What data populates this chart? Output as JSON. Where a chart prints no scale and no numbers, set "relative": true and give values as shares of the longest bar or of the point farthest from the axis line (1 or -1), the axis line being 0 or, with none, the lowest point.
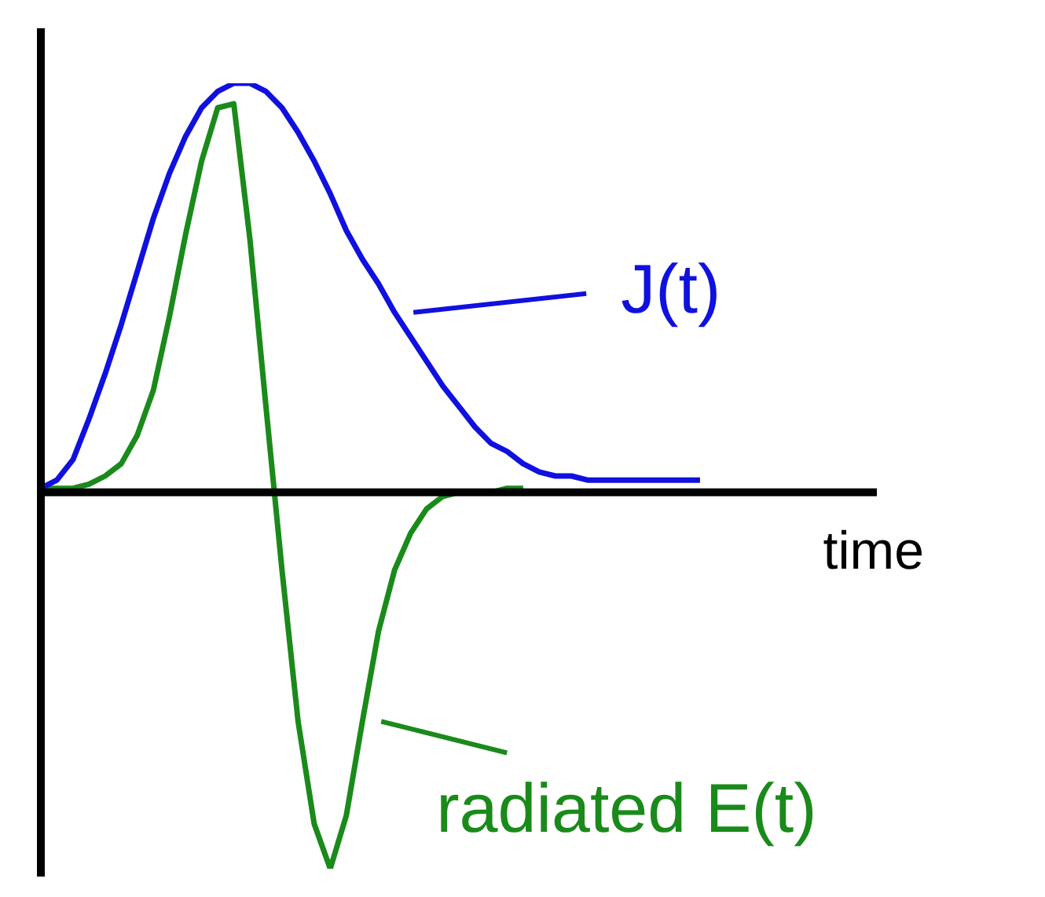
{
  "chart_data": {
    "type": "line",
    "relative": true,
    "xlabel": "time",
    "marker": "none",
    "line_style": "solid",
    "categories": [
      null,
      null,
      null,
      null,
      null,
      null,
      null,
      null,
      null,
      null,
      null,
      null,
      null,
      null,
      null,
      null,
      null,
      null,
      null,
      null,
      null,
      null,
      null,
      null,
      null,
      null,
      null,
      null,
      null,
      null,
      null,
      null,
      null,
      null,
      null,
      null,
      null,
      null,
      null,
      null,
      null,
      null,
      null,
      null,
      null,
      null,
      null,
      null,
      null,
      null,
      null,
      null,
      null
    ],
    "series": [
      {
        "name": "J(t)",
        "color": "#1010e0",
        "values": [
          0.01,
          0.03,
          0.08,
          0.18,
          0.29,
          0.41,
          0.54,
          0.67,
          0.78,
          0.87,
          0.94,
          0.98,
          1.0,
          1.0,
          0.98,
          0.94,
          0.88,
          0.81,
          0.73,
          0.64,
          0.57,
          0.51,
          0.44,
          0.38,
          0.32,
          0.26,
          0.21,
          0.16,
          0.12,
          0.1,
          0.07,
          0.05,
          0.04,
          0.04,
          0.03,
          0.03,
          0.03,
          0.03,
          0.03,
          0.03,
          0.03,
          0.03,
          null,
          null,
          null,
          null,
          null,
          null,
          null,
          null,
          null,
          null,
          null
        ]
      },
      {
        "name": "radiated E(t)",
        "color": "#1a8a1a",
        "values": [
          0.01,
          0.01,
          0.01,
          0.02,
          0.04,
          0.07,
          0.14,
          0.25,
          0.43,
          0.63,
          0.81,
          0.94,
          0.95,
          0.62,
          0.21,
          -0.19,
          -0.56,
          -0.81,
          -0.92,
          -0.79,
          -0.56,
          -0.34,
          -0.19,
          -0.1,
          -0.04,
          -0.01,
          0,
          0,
          0,
          0.01,
          0.01,
          null,
          null,
          null,
          null,
          null,
          null,
          null,
          null,
          null,
          null,
          null,
          null,
          null,
          null,
          null,
          null,
          null,
          null,
          null,
          null,
          null,
          null
        ]
      }
    ]
  }
}
